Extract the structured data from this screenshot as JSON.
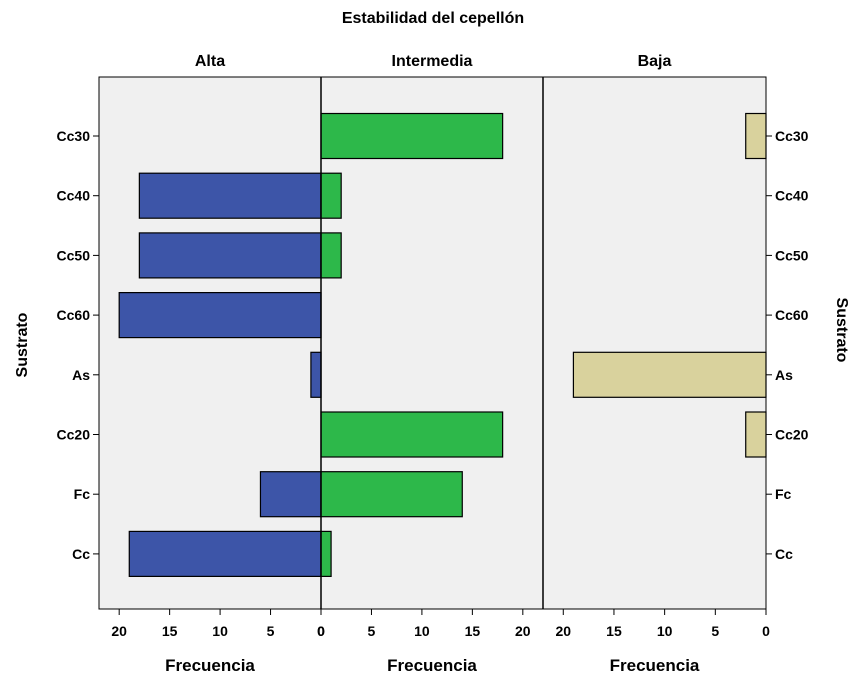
{
  "chart_data": {
    "type": "bar",
    "orientation": "horizontal-population-pyramid",
    "title": "Estabilidad del cepellón",
    "ylabel": "Sustrato",
    "categories": [
      "Cc30",
      "Cc40",
      "Cc50",
      "Cc60",
      "As",
      "Cc20",
      "Fc",
      "Cc"
    ],
    "panels": [
      {
        "name": "Alta",
        "xlabel": "Frecuencia",
        "direction": "reversed",
        "xlim": [
          0,
          22
        ],
        "ticks": [
          "20",
          "15",
          "10",
          "5",
          "0"
        ],
        "tick_values": [
          20,
          15,
          10,
          5,
          0
        ],
        "color": "#3d55a8",
        "values": [
          0,
          18,
          18,
          20,
          1,
          0,
          6,
          19
        ]
      },
      {
        "name": "Intermedia",
        "xlabel": "Frecuencia",
        "direction": "normal",
        "xlim": [
          0,
          22
        ],
        "ticks": [
          "0",
          "5",
          "10",
          "15",
          "20"
        ],
        "tick_values": [
          0,
          5,
          10,
          15,
          20
        ],
        "color": "#2db84a",
        "values": [
          18,
          2,
          2,
          0,
          0,
          18,
          14,
          1
        ]
      },
      {
        "name": "Baja",
        "xlabel": "Frecuencia",
        "direction": "reversed",
        "xlim": [
          0,
          22
        ],
        "ticks": [
          "20",
          "15",
          "10",
          "5",
          "0"
        ],
        "tick_values": [
          20,
          15,
          10,
          5,
          0
        ],
        "color": "#d9d29d",
        "values": [
          2,
          0,
          0,
          0,
          19,
          2,
          0,
          0
        ]
      }
    ],
    "plot_background": "#f0f0f0",
    "grid": false
  }
}
